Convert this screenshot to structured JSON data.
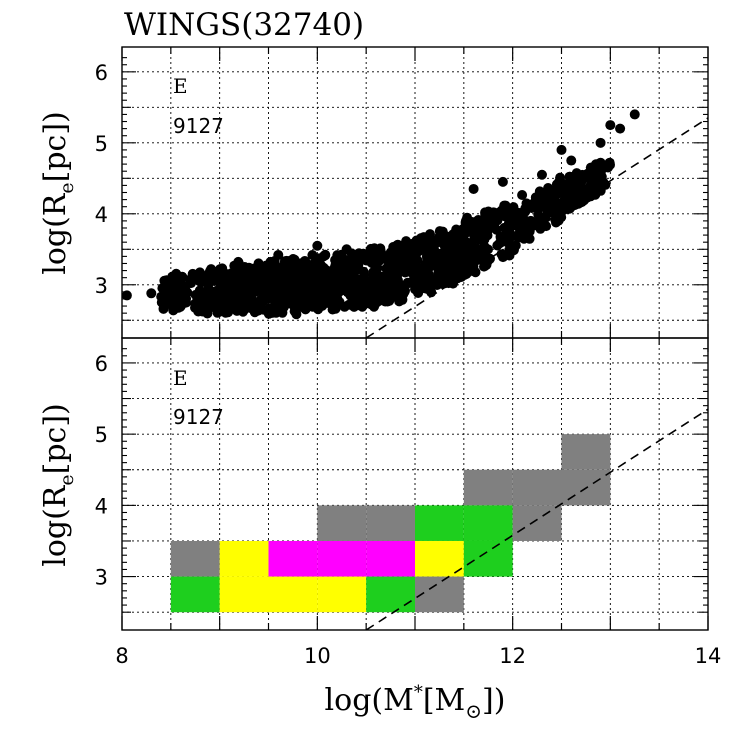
{
  "chart_data": [
    {
      "panel": "top",
      "type": "scatter",
      "title": "WINGS(32740)",
      "ylabel_pre": "log(R",
      "ylabel_sub": "e",
      "ylabel_post": "[pc])",
      "xlim": [
        8,
        14
      ],
      "ylim": [
        2.25,
        6.35
      ],
      "x_ticks": [
        8,
        10,
        12,
        14
      ],
      "y_ticks": [
        3,
        4,
        5,
        6
      ],
      "grid": true,
      "annotation_type": "E",
      "annotation_count": "9127",
      "reference_line": {
        "x": [
          10.5,
          14
        ],
        "y": [
          2.25,
          5.35
        ],
        "style": "dashed"
      },
      "cloud_envelope": {
        "x": [
          8.0,
          8.5,
          9.0,
          9.5,
          10.0,
          10.5,
          11.0,
          11.5,
          12.0,
          12.5,
          13.0
        ],
        "y_upper": [
          2.95,
          3.15,
          3.3,
          3.4,
          3.45,
          3.5,
          3.7,
          3.95,
          4.25,
          4.55,
          4.8
        ],
        "y_lower": [
          2.75,
          2.6,
          2.55,
          2.55,
          2.6,
          2.65,
          2.8,
          3.0,
          3.4,
          3.9,
          4.4
        ]
      },
      "outliers": [
        {
          "x": 8.05,
          "y": 2.85
        },
        {
          "x": 8.3,
          "y": 2.88
        },
        {
          "x": 8.6,
          "y": 3.0
        },
        {
          "x": 11.6,
          "y": 4.35
        },
        {
          "x": 11.9,
          "y": 4.45
        },
        {
          "x": 12.3,
          "y": 4.55
        },
        {
          "x": 12.5,
          "y": 4.9
        },
        {
          "x": 12.6,
          "y": 4.75
        },
        {
          "x": 12.8,
          "y": 4.65
        },
        {
          "x": 12.9,
          "y": 4.72
        },
        {
          "x": 12.9,
          "y": 5.0
        },
        {
          "x": 13.0,
          "y": 5.25
        },
        {
          "x": 13.1,
          "y": 5.2
        },
        {
          "x": 13.25,
          "y": 5.4
        },
        {
          "x": 10.0,
          "y": 3.55
        },
        {
          "x": 10.3,
          "y": 3.5
        },
        {
          "x": 9.6,
          "y": 3.42
        }
      ]
    },
    {
      "panel": "bottom",
      "type": "heatmap",
      "ylabel_pre": "log(R",
      "ylabel_sub": "e",
      "ylabel_post": "[pc])",
      "xlabel_pre": "log(M",
      "xlabel_sup": "*",
      "xlabel_mid": "[M",
      "xlabel_sub": "⊙",
      "xlabel_post": "])",
      "xlim": [
        8,
        14
      ],
      "ylim": [
        2.25,
        6.35
      ],
      "x_ticks": [
        8,
        10,
        12,
        14
      ],
      "y_ticks": [
        3,
        4,
        5,
        6
      ],
      "grid": true,
      "annotation_type": "E",
      "annotation_count": "9127",
      "reference_line": {
        "x": [
          10.5,
          14
        ],
        "y": [
          2.25,
          5.35
        ],
        "style": "dashed"
      },
      "bin_width": 0.5,
      "bins": [
        {
          "x": 8.5,
          "y": 3.0,
          "y2": 3.5,
          "color": "gray"
        },
        {
          "x": 8.5,
          "y": 2.5,
          "y2": 3.0,
          "color": "green"
        },
        {
          "x": 9.0,
          "y": 3.0,
          "y2": 3.5,
          "color": "yellow"
        },
        {
          "x": 9.0,
          "y": 2.5,
          "y2": 3.0,
          "color": "yellow"
        },
        {
          "x": 9.5,
          "y": 3.0,
          "y2": 3.5,
          "color": "magenta"
        },
        {
          "x": 9.5,
          "y": 2.5,
          "y2": 3.0,
          "color": "yellow"
        },
        {
          "x": 10.0,
          "y": 3.5,
          "y2": 4.0,
          "color": "gray"
        },
        {
          "x": 10.0,
          "y": 3.0,
          "y2": 3.5,
          "color": "magenta"
        },
        {
          "x": 10.0,
          "y": 2.5,
          "y2": 3.0,
          "color": "yellow"
        },
        {
          "x": 10.5,
          "y": 3.5,
          "y2": 4.0,
          "color": "gray"
        },
        {
          "x": 10.5,
          "y": 3.0,
          "y2": 3.5,
          "color": "magenta"
        },
        {
          "x": 10.5,
          "y": 2.5,
          "y2": 3.0,
          "color": "green"
        },
        {
          "x": 11.0,
          "y": 3.5,
          "y2": 4.0,
          "color": "green"
        },
        {
          "x": 11.0,
          "y": 3.0,
          "y2": 3.5,
          "color": "yellow"
        },
        {
          "x": 11.0,
          "y": 2.5,
          "y2": 3.0,
          "color": "gray"
        },
        {
          "x": 11.5,
          "y": 4.0,
          "y2": 4.5,
          "color": "gray"
        },
        {
          "x": 11.5,
          "y": 3.5,
          "y2": 4.0,
          "color": "green"
        },
        {
          "x": 11.5,
          "y": 3.0,
          "y2": 3.5,
          "color": "green"
        },
        {
          "x": 12.0,
          "y": 4.0,
          "y2": 4.5,
          "color": "gray"
        },
        {
          "x": 12.0,
          "y": 3.5,
          "y2": 4.0,
          "color": "gray"
        },
        {
          "x": 12.5,
          "y": 4.5,
          "y2": 5.0,
          "color": "gray"
        },
        {
          "x": 12.5,
          "y": 4.0,
          "y2": 4.5,
          "color": "gray"
        }
      ],
      "palette": {
        "gray": "#808080",
        "green": "#1ecf1e",
        "yellow": "#ffff00",
        "magenta": "#ff00ff"
      }
    }
  ]
}
